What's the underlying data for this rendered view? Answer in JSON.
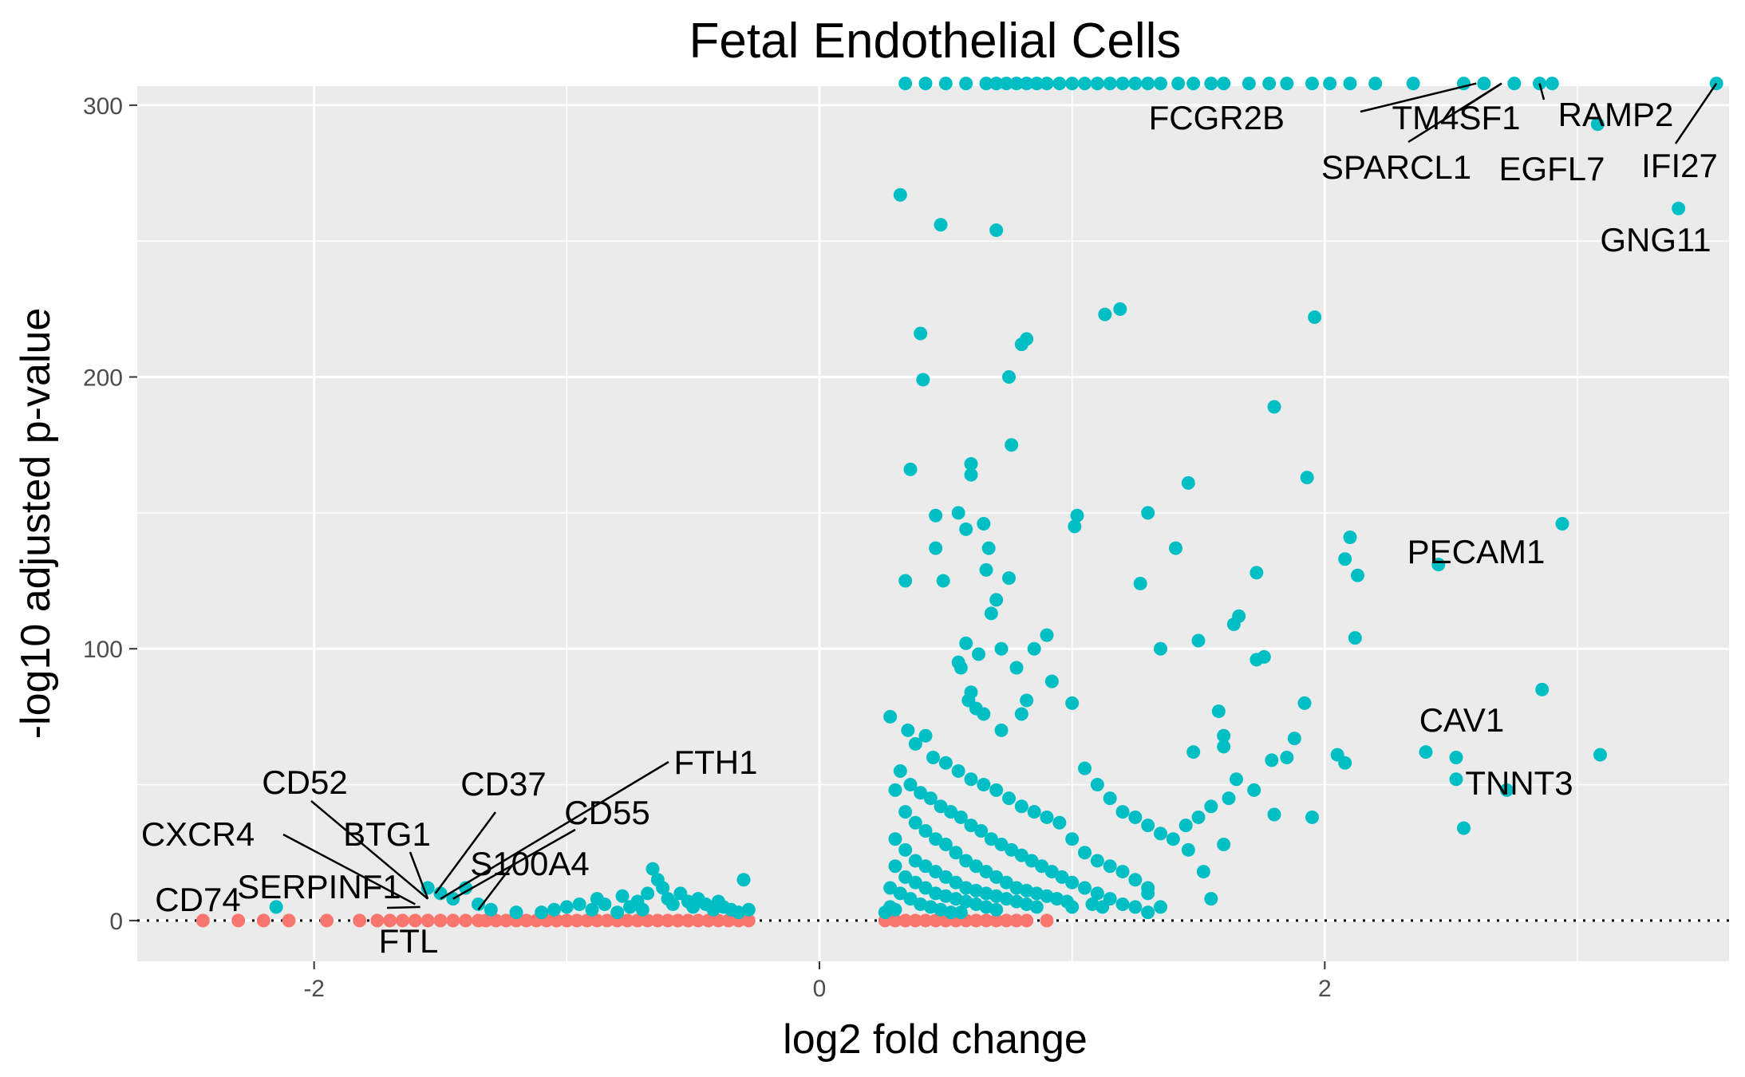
{
  "chart_data": {
    "type": "scatter",
    "title": "Fetal Endothelial Cells",
    "xlabel": "log2 fold change",
    "ylabel": "-log10 adjusted p-value",
    "xlim": [
      -2.7,
      3.6
    ],
    "ylim": [
      -15,
      307
    ],
    "x_ticks": [
      -2,
      0,
      2
    ],
    "x_tick_labels": [
      "-2",
      "0",
      "2"
    ],
    "y_ticks": [
      0,
      100,
      200,
      300
    ],
    "y_tick_labels": [
      "0",
      "100",
      "200",
      "300"
    ],
    "grid": true,
    "reference_line": {
      "y": 0,
      "style": "dotted"
    },
    "colors": {
      "panel": "#ebebeb",
      "grid": "#ffffff",
      "significant": "#00bfc4",
      "not_significant": "#f8766d"
    },
    "significant_points": [
      [
        -2.15,
        5
      ],
      [
        -1.55,
        12
      ],
      [
        -1.5,
        10
      ],
      [
        -1.45,
        8
      ],
      [
        -1.4,
        12
      ],
      [
        -1.35,
        6
      ],
      [
        -1.3,
        4
      ],
      [
        -1.2,
        3
      ],
      [
        -1.1,
        3
      ],
      [
        -1.05,
        4
      ],
      [
        -1.0,
        5
      ],
      [
        -0.95,
        6
      ],
      [
        -0.9,
        4
      ],
      [
        -0.88,
        8
      ],
      [
        -0.85,
        6
      ],
      [
        -0.8,
        3
      ],
      [
        -0.78,
        9
      ],
      [
        -0.75,
        5
      ],
      [
        -0.72,
        7
      ],
      [
        -0.7,
        4
      ],
      [
        -0.68,
        10
      ],
      [
        -0.66,
        19
      ],
      [
        -0.64,
        15
      ],
      [
        -0.62,
        12
      ],
      [
        -0.6,
        8
      ],
      [
        -0.58,
        6
      ],
      [
        -0.55,
        10
      ],
      [
        -0.52,
        7
      ],
      [
        -0.5,
        5
      ],
      [
        -0.48,
        8
      ],
      [
        -0.45,
        6
      ],
      [
        -0.42,
        4
      ],
      [
        -0.4,
        7
      ],
      [
        -0.38,
        5
      ],
      [
        -0.35,
        4
      ],
      [
        -0.32,
        3
      ],
      [
        -0.3,
        15
      ],
      [
        -0.28,
        4
      ],
      [
        0.32,
        267
      ],
      [
        0.48,
        256
      ],
      [
        0.7,
        254
      ],
      [
        0.4,
        216
      ],
      [
        0.82,
        214
      ],
      [
        0.8,
        212
      ],
      [
        0.41,
        199
      ],
      [
        0.75,
        200
      ],
      [
        0.76,
        175
      ],
      [
        0.36,
        166
      ],
      [
        0.6,
        168
      ],
      [
        0.6,
        164
      ],
      [
        0.55,
        150
      ],
      [
        0.46,
        149
      ],
      [
        0.65,
        146
      ],
      [
        0.58,
        144
      ],
      [
        0.46,
        137
      ],
      [
        0.67,
        137
      ],
      [
        0.34,
        125
      ],
      [
        0.49,
        125
      ],
      [
        0.66,
        129
      ],
      [
        0.75,
        126
      ],
      [
        0.7,
        118
      ],
      [
        0.68,
        113
      ],
      [
        0.58,
        102
      ],
      [
        0.63,
        98
      ],
      [
        0.72,
        100
      ],
      [
        0.55,
        95
      ],
      [
        0.56,
        93
      ],
      [
        0.78,
        93
      ],
      [
        0.85,
        100
      ],
      [
        0.9,
        105
      ],
      [
        0.92,
        88
      ],
      [
        0.82,
        81
      ],
      [
        0.8,
        76
      ],
      [
        0.6,
        84
      ],
      [
        0.59,
        81
      ],
      [
        0.62,
        78
      ],
      [
        0.65,
        76
      ],
      [
        0.72,
        70
      ],
      [
        0.28,
        75
      ],
      [
        0.35,
        70
      ],
      [
        0.42,
        68
      ],
      [
        0.38,
        65
      ],
      [
        0.45,
        60
      ],
      [
        0.5,
        58
      ],
      [
        0.55,
        55
      ],
      [
        0.6,
        52
      ],
      [
        0.65,
        50
      ],
      [
        0.7,
        48
      ],
      [
        0.75,
        45
      ],
      [
        0.8,
        42
      ],
      [
        0.85,
        40
      ],
      [
        0.9,
        38
      ],
      [
        0.95,
        36
      ],
      [
        0.32,
        55
      ],
      [
        0.36,
        50
      ],
      [
        0.4,
        47
      ],
      [
        0.44,
        45
      ],
      [
        0.48,
        42
      ],
      [
        0.52,
        40
      ],
      [
        0.56,
        38
      ],
      [
        0.6,
        35
      ],
      [
        0.64,
        33
      ],
      [
        0.68,
        30
      ],
      [
        0.72,
        28
      ],
      [
        0.76,
        26
      ],
      [
        0.8,
        24
      ],
      [
        0.84,
        22
      ],
      [
        0.88,
        20
      ],
      [
        0.92,
        18
      ],
      [
        0.96,
        16
      ],
      [
        0.3,
        48
      ],
      [
        0.34,
        40
      ],
      [
        0.38,
        36
      ],
      [
        0.42,
        33
      ],
      [
        0.46,
        30
      ],
      [
        0.5,
        28
      ],
      [
        0.54,
        25
      ],
      [
        0.58,
        22
      ],
      [
        0.62,
        20
      ],
      [
        0.66,
        18
      ],
      [
        0.7,
        16
      ],
      [
        0.74,
        14
      ],
      [
        0.78,
        12
      ],
      [
        0.82,
        11
      ],
      [
        0.86,
        10
      ],
      [
        0.9,
        9
      ],
      [
        0.94,
        8
      ],
      [
        0.98,
        7
      ],
      [
        0.3,
        30
      ],
      [
        0.34,
        26
      ],
      [
        0.38,
        22
      ],
      [
        0.42,
        20
      ],
      [
        0.46,
        18
      ],
      [
        0.5,
        16
      ],
      [
        0.54,
        14
      ],
      [
        0.58,
        12
      ],
      [
        0.62,
        11
      ],
      [
        0.66,
        10
      ],
      [
        0.7,
        9
      ],
      [
        0.74,
        8
      ],
      [
        0.78,
        7
      ],
      [
        0.82,
        6
      ],
      [
        0.86,
        5
      ],
      [
        0.3,
        20
      ],
      [
        0.34,
        16
      ],
      [
        0.38,
        14
      ],
      [
        0.42,
        12
      ],
      [
        0.46,
        10
      ],
      [
        0.5,
        9
      ],
      [
        0.54,
        8
      ],
      [
        0.58,
        7
      ],
      [
        0.62,
        6
      ],
      [
        0.66,
        5
      ],
      [
        0.7,
        4
      ],
      [
        0.28,
        12
      ],
      [
        0.32,
        10
      ],
      [
        0.36,
        8
      ],
      [
        0.4,
        6
      ],
      [
        0.44,
        5
      ],
      [
        0.48,
        4
      ],
      [
        0.52,
        3
      ],
      [
        0.56,
        3
      ],
      [
        0.28,
        5
      ],
      [
        0.3,
        4
      ],
      [
        0.26,
        3
      ],
      [
        1.0,
        80
      ],
      [
        1.05,
        56
      ],
      [
        1.1,
        50
      ],
      [
        1.15,
        45
      ],
      [
        1.2,
        40
      ],
      [
        1.25,
        38
      ],
      [
        1.3,
        35
      ],
      [
        1.35,
        32
      ],
      [
        1.0,
        30
      ],
      [
        1.05,
        25
      ],
      [
        1.1,
        22
      ],
      [
        1.15,
        20
      ],
      [
        1.2,
        18
      ],
      [
        1.25,
        15
      ],
      [
        1.3,
        12
      ],
      [
        1.0,
        14
      ],
      [
        1.05,
        12
      ],
      [
        1.1,
        10
      ],
      [
        1.15,
        8
      ],
      [
        1.2,
        6
      ],
      [
        1.25,
        5
      ],
      [
        1.3,
        10
      ],
      [
        1.35,
        5
      ],
      [
        1.0,
        5
      ],
      [
        1.08,
        6
      ],
      [
        1.12,
        5
      ],
      [
        1.13,
        223
      ],
      [
        1.19,
        225
      ],
      [
        1.02,
        149
      ],
      [
        1.01,
        145
      ],
      [
        1.3,
        150
      ],
      [
        1.46,
        161
      ],
      [
        1.41,
        137
      ],
      [
        1.27,
        124
      ],
      [
        1.35,
        100
      ],
      [
        1.5,
        103
      ],
      [
        1.64,
        109
      ],
      [
        1.66,
        112
      ],
      [
        1.73,
        96
      ],
      [
        1.76,
        97
      ],
      [
        1.73,
        128
      ],
      [
        1.8,
        189
      ],
      [
        1.96,
        222
      ],
      [
        1.93,
        163
      ],
      [
        2.1,
        141
      ],
      [
        2.08,
        133
      ],
      [
        2.13,
        127
      ],
      [
        2.12,
        104
      ],
      [
        1.92,
        80
      ],
      [
        1.88,
        67
      ],
      [
        1.79,
        59
      ],
      [
        1.85,
        60
      ],
      [
        1.58,
        77
      ],
      [
        1.6,
        68
      ],
      [
        1.6,
        64
      ],
      [
        1.48,
        62
      ],
      [
        1.65,
        52
      ],
      [
        1.62,
        45
      ],
      [
        1.72,
        48
      ],
      [
        1.55,
        42
      ],
      [
        1.5,
        38
      ],
      [
        1.45,
        35
      ],
      [
        1.4,
        30
      ],
      [
        1.46,
        26
      ],
      [
        1.8,
        39
      ],
      [
        1.95,
        38
      ],
      [
        1.6,
        28
      ],
      [
        1.52,
        18
      ],
      [
        1.55,
        8
      ],
      [
        1.3,
        3
      ],
      [
        2.05,
        61
      ],
      [
        2.08,
        58
      ],
      [
        2.4,
        62
      ],
      [
        2.52,
        60
      ],
      [
        2.52,
        52
      ],
      [
        2.55,
        34
      ],
      [
        2.72,
        48
      ],
      [
        2.86,
        85
      ],
      [
        3.09,
        61
      ],
      [
        2.45,
        131
      ],
      [
        2.94,
        146
      ],
      [
        3.4,
        262
      ],
      [
        3.08,
        293
      ],
      [
        0.34,
        308
      ],
      [
        0.42,
        308
      ],
      [
        0.5,
        308
      ],
      [
        0.58,
        308
      ],
      [
        0.66,
        308
      ],
      [
        0.7,
        308
      ],
      [
        0.74,
        308
      ],
      [
        0.78,
        308
      ],
      [
        0.82,
        308
      ],
      [
        0.86,
        308
      ],
      [
        0.9,
        308
      ],
      [
        0.95,
        308
      ],
      [
        1.0,
        308
      ],
      [
        1.05,
        308
      ],
      [
        1.1,
        308
      ],
      [
        1.15,
        308
      ],
      [
        1.2,
        308
      ],
      [
        1.25,
        308
      ],
      [
        1.3,
        308
      ],
      [
        1.35,
        308
      ],
      [
        1.42,
        308
      ],
      [
        1.48,
        308
      ],
      [
        1.55,
        308
      ],
      [
        1.6,
        308
      ],
      [
        1.7,
        308
      ],
      [
        1.78,
        308
      ],
      [
        1.85,
        308
      ],
      [
        1.95,
        308
      ],
      [
        2.02,
        308
      ],
      [
        2.1,
        308
      ],
      [
        2.2,
        308
      ],
      [
        2.35,
        308
      ],
      [
        2.55,
        308
      ],
      [
        2.63,
        308
      ],
      [
        2.75,
        308
      ],
      [
        2.85,
        308
      ],
      [
        2.9,
        308
      ],
      [
        3.55,
        308
      ]
    ],
    "nonsignificant_points": [
      [
        -2.44,
        0
      ],
      [
        -2.3,
        0
      ],
      [
        -2.2,
        0
      ],
      [
        -2.1,
        0
      ],
      [
        -1.95,
        0
      ],
      [
        -1.82,
        0
      ],
      [
        -1.75,
        0
      ],
      [
        -1.7,
        0
      ],
      [
        -1.65,
        0
      ],
      [
        -1.6,
        0
      ],
      [
        -1.55,
        0
      ],
      [
        -1.5,
        0
      ],
      [
        -1.45,
        0
      ],
      [
        -1.4,
        0
      ],
      [
        -1.35,
        0
      ],
      [
        -1.32,
        0
      ],
      [
        -1.28,
        0
      ],
      [
        -1.24,
        0
      ],
      [
        -1.2,
        0
      ],
      [
        -1.16,
        0
      ],
      [
        -1.12,
        0
      ],
      [
        -1.08,
        0
      ],
      [
        -1.04,
        0
      ],
      [
        -1.0,
        0
      ],
      [
        -0.96,
        0
      ],
      [
        -0.92,
        0
      ],
      [
        -0.88,
        0
      ],
      [
        -0.84,
        0
      ],
      [
        -0.8,
        0
      ],
      [
        -0.76,
        0
      ],
      [
        -0.72,
        0
      ],
      [
        -0.68,
        0
      ],
      [
        -0.64,
        0
      ],
      [
        -0.6,
        0
      ],
      [
        -0.56,
        0
      ],
      [
        -0.52,
        0
      ],
      [
        -0.48,
        0
      ],
      [
        -0.44,
        0
      ],
      [
        -0.4,
        0
      ],
      [
        -0.36,
        0
      ],
      [
        -0.32,
        0
      ],
      [
        -0.28,
        0
      ],
      [
        0.26,
        0
      ],
      [
        0.3,
        0
      ],
      [
        0.34,
        0
      ],
      [
        0.38,
        0
      ],
      [
        0.42,
        0
      ],
      [
        0.46,
        0
      ],
      [
        0.5,
        0
      ],
      [
        0.54,
        0
      ],
      [
        0.58,
        0
      ],
      [
        0.62,
        0
      ],
      [
        0.66,
        0
      ],
      [
        0.7,
        0
      ],
      [
        0.74,
        0
      ],
      [
        0.78,
        0
      ],
      [
        0.82,
        0
      ],
      [
        0.9,
        0
      ]
    ],
    "annotations": [
      {
        "text": "FCGR2B",
        "x": 2.6,
        "y": 308
      },
      {
        "text": "TM4SF1",
        "x": 2.7,
        "y": 308
      },
      {
        "text": "SPARCL1",
        "x": 2.7,
        "y": 308
      },
      {
        "text": "RAMP2",
        "x": 2.85,
        "y": 308
      },
      {
        "text": "EGFL7",
        "x": 3.08,
        "y": 293
      },
      {
        "text": "IFI27",
        "x": 3.55,
        "y": 308
      },
      {
        "text": "GNG11",
        "x": 3.4,
        "y": 262
      },
      {
        "text": "PECAM1",
        "x": 2.45,
        "y": 131
      },
      {
        "text": "CAV1",
        "x": 2.86,
        "y": 85
      },
      {
        "text": "TNNT3",
        "x": 2.72,
        "y": 48
      },
      {
        "text": "FTH1",
        "x": -1.5,
        "y": 8
      },
      {
        "text": "CD37",
        "x": -1.52,
        "y": 10
      },
      {
        "text": "CD55",
        "x": -1.45,
        "y": 8
      },
      {
        "text": "CD52",
        "x": -1.55,
        "y": 8
      },
      {
        "text": "BTG1",
        "x": -1.55,
        "y": 8
      },
      {
        "text": "S100A4",
        "x": -1.35,
        "y": 4
      },
      {
        "text": "CXCR4",
        "x": -1.6,
        "y": 6
      },
      {
        "text": "SERPINF1",
        "x": -1.58,
        "y": 5
      },
      {
        "text": "CD74",
        "x": -2.15,
        "y": 5
      },
      {
        "text": "FTL",
        "x": -1.55,
        "y": 0
      }
    ]
  }
}
